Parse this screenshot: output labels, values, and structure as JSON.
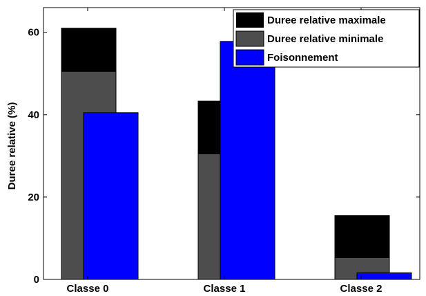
{
  "chart_data": {
    "type": "bar",
    "categories": [
      "Classe 0",
      "Classe 1",
      "Classe 2"
    ],
    "series": [
      {
        "name": "Duree relative maximale",
        "values": [
          61,
          43.3,
          15.5
        ],
        "color": "#000000"
      },
      {
        "name": "Duree relative minimale",
        "values": [
          50.5,
          30.5,
          5.3
        ],
        "color": "#4d4d4d"
      },
      {
        "name": "Foisonnement",
        "values": [
          40.5,
          57.8,
          1.6
        ],
        "color": "#0000ff"
      }
    ],
    "title": "",
    "xlabel": "",
    "ylabel": "Duree relative (%)",
    "ylim": [
      0,
      66
    ],
    "yticks": [
      "0",
      "20",
      "40",
      "60"
    ],
    "ytick_values": [
      0,
      20,
      40,
      60
    ],
    "legend": "top-right",
    "grid": false
  }
}
